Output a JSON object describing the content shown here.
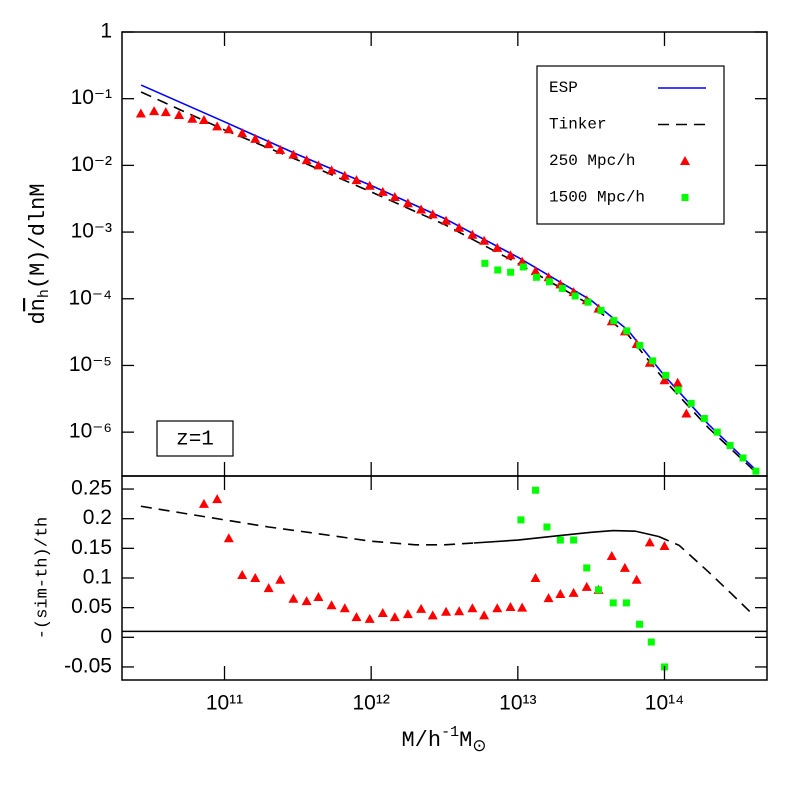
{
  "chart_data": [
    {
      "type": "line",
      "x_scale": "log",
      "y_scale": "log",
      "xlim": [
        20000000000.0,
        500000000000000.0
      ],
      "ylim": [
        2.2e-07,
        1
      ],
      "yticks": [
        1,
        {
          "value": 0.1,
          "label": "10⁻¹"
        },
        {
          "value": 0.01,
          "label": "10⁻²"
        },
        {
          "value": 0.001,
          "label": "10⁻³"
        },
        {
          "value": 0.0001,
          "label": "10⁻⁴"
        },
        {
          "value": 1e-05,
          "label": "10⁻⁵"
        },
        {
          "value": 1e-06,
          "label": "10⁻⁶"
        }
      ],
      "ylabel": {
        "pre": "d",
        "var": "n",
        "sub": "h",
        "post": "(M)/dlnM"
      },
      "annotation": "z=1",
      "legend": "upper right",
      "series": [
        {
          "name": "ESP",
          "color": "#0000ff",
          "style": "solid",
          "x": [
            27000000000.0,
            100000000000.0,
            316000000000.0,
            1000000000000.0,
            3160000000000.0,
            10000000000000.0,
            31600000000000.0,
            56200000000000.0,
            100000000000000.0,
            200000000000000.0,
            420000000000000.0
          ],
          "values": [
            0.16,
            0.045,
            0.0145,
            0.005,
            0.0016,
            0.00042,
            9.5e-05,
            3.4e-05,
            7e-06,
            1.3e-06,
            2.7e-07
          ]
        },
        {
          "name": "Tinker",
          "color": "#000000",
          "style": "dashed",
          "x": [
            27000000000.0,
            100000000000.0,
            316000000000.0,
            1000000000000.0,
            3160000000000.0,
            10000000000000.0,
            31600000000000.0,
            56200000000000.0,
            100000000000000.0,
            200000000000000.0,
            420000000000000.0
          ],
          "values": [
            0.126,
            0.034,
            0.012,
            0.004,
            0.0013,
            0.00034,
            8e-05,
            2.9e-05,
            6e-06,
            1.15e-06,
            2.5e-07
          ]
        },
        {
          "name": "250 Mpc/h",
          "color": "#ff0000",
          "marker": "triangle",
          "x": [
            26900000000.0,
            33100000000.0,
            39800000000.0,
            49000000000.0,
            60300000000.0,
            72400000000.0,
            89100000000.0,
            107000000000.0,
            132000000000.0,
            162000000000.0,
            200000000000.0,
            240000000000.0,
            295000000000.0,
            363000000000.0,
            437000000000.0,
            537000000000.0,
            661000000000.0,
            794000000000.0,
            977000000000.0,
            1200000000000.0,
            1450000000000.0,
            1780000000000.0,
            2190000000000.0,
            2630000000000.0,
            3240000000000.0,
            3980000000000.0,
            4900000000000.0,
            5890000000000.0,
            7240000000000.0,
            8910000000000.0,
            10700000000000.0,
            13200000000000.0,
            16200000000000.0,
            19500000000000.0,
            24000000000000.0,
            29500000000000.0,
            35500000000000.0,
            43700000000000.0,
            53700000000000.0,
            64600000000000.0,
            79400000000000.0,
            100000000000000.0,
            123000000000000.0,
            141000000000000.0
          ],
          "values": [
            0.06,
            0.065,
            0.063,
            0.057,
            0.05,
            0.048,
            0.0385,
            0.0348,
            0.0305,
            0.025,
            0.0208,
            0.0171,
            0.0145,
            0.012,
            0.01,
            0.0084,
            0.007,
            0.006,
            0.00495,
            0.004,
            0.00335,
            0.00271,
            0.00218,
            0.00184,
            0.00148,
            0.00116,
            0.00091,
            0.00074,
            0.00058,
            0.00045,
            0.00036,
            0.00026,
            0.00021,
            0.000164,
            0.000126,
            9.5e-05,
            7.1e-05,
            4.6e-05,
            3.25e-05,
            2.1e-05,
            1.1e-05,
            6e-06,
            5.5e-06,
            1.9e-06
          ]
        },
        {
          "name": "1500 Mpc/h",
          "color": "#00ff00",
          "marker": "square",
          "x": [
            5960000000000.0,
            7300000000000.0,
            8930000000000.0,
            10900000000000.0,
            13400000000000.0,
            16400000000000.0,
            20100000000000.0,
            24600000000000.0,
            30100000000000.0,
            36900000000000.0,
            45200000000000.0,
            55300000000000.0,
            67800000000000.0,
            83000000000000.0,
            102000000000000.0,
            124000000000000.0,
            152000000000000.0,
            187000000000000.0,
            229000000000000.0,
            280000000000000.0,
            343000000000000.0,
            420000000000000.0
          ],
          "values": [
            0.00034,
            0.00027,
            0.00025,
            0.0003,
            0.00021,
            0.00018,
            0.000143,
            0.00011,
            8.9e-05,
            6.7e-05,
            4.7e-05,
            3.3e-05,
            2e-05,
            1.17e-05,
            7.1e-06,
            4.3e-06,
            2.7e-06,
            1.6e-06,
            1e-06,
            6.3e-07,
            4.1e-07,
            2.6e-07
          ]
        }
      ]
    },
    {
      "type": "line",
      "x_scale": "log",
      "xlim": [
        20000000000.0,
        500000000000000.0
      ],
      "ylim": [
        -0.072,
        0.272
      ],
      "xticks": [
        {
          "value": 100000000000.0,
          "label": "10¹¹"
        },
        {
          "value": 1000000000000.0,
          "label": "10¹²"
        },
        {
          "value": 10000000000000.0,
          "label": "10¹³"
        },
        {
          "value": 100000000000000.0,
          "label": "10¹⁴"
        }
      ],
      "yticks": [
        -0.05,
        0,
        0.05,
        0.1,
        0.15,
        0.2,
        0.25
      ],
      "xlabel": {
        "pre": "M/h",
        "sup": "-1",
        "mid": "M",
        "sub": "⊙"
      },
      "ylabel": "-(sim-th)/th",
      "hline": 0.01,
      "series": [
        {
          "color": "#000000",
          "style": "dashed",
          "x": [
            26900000000.0,
            50100000000.0,
            100000000000.0,
            200000000000.0,
            398000000000.0,
            1000000000000.0,
            2000000000000.0,
            3160000000000.0,
            5010000000000.0,
            20000000000000.0,
            91200000000000.0,
            126000000000000.0,
            200000000000000.0,
            282000000000000.0,
            398000000000000.0
          ],
          "values": [
            0.221,
            0.21,
            0.198,
            0.186,
            0.176,
            0.162,
            0.156,
            0.156,
            0.159,
            null,
            0.17,
            0.155,
            0.11,
            0.075,
            0.039
          ]
        },
        {
          "color": "#000000",
          "style": "solid",
          "x": [
            5010000000000.0,
            10000000000000.0,
            20000000000000.0,
            31600000000000.0,
            44700000000000.0,
            63100000000000.0,
            91200000000000.0
          ],
          "values": [
            0.159,
            0.164,
            0.172,
            0.177,
            0.18,
            0.179,
            0.17
          ]
        },
        {
          "color": "#ff0000",
          "marker": "triangle",
          "x": [
            72400000000.0,
            89100000000.0,
            107000000000.0,
            132000000000.0,
            162000000000.0,
            200000000000.0,
            240000000000.0,
            295000000000.0,
            363000000000.0,
            437000000000.0,
            537000000000.0,
            661000000000.0,
            794000000000.0,
            977000000000.0,
            1200000000000.0,
            1450000000000.0,
            1780000000000.0,
            2190000000000.0,
            2630000000000.0,
            3240000000000.0,
            3980000000000.0,
            4900000000000.0,
            5890000000000.0,
            7240000000000.0,
            8910000000000.0,
            10700000000000.0,
            13200000000000.0,
            16200000000000.0,
            19500000000000.0,
            24000000000000.0,
            29500000000000.0,
            35500000000000.0,
            43700000000000.0,
            53700000000000.0,
            64600000000000.0,
            79400000000000.0,
            100000000000000.0
          ],
          "values": [
            0.225,
            0.233,
            0.167,
            0.105,
            0.1,
            0.083,
            0.097,
            0.065,
            0.061,
            0.068,
            0.054,
            0.049,
            0.034,
            0.031,
            0.041,
            0.034,
            0.039,
            0.048,
            0.037,
            0.043,
            0.044,
            0.049,
            0.037,
            0.049,
            0.051,
            0.05,
            0.1,
            0.066,
            0.073,
            0.075,
            0.085,
            0.08,
            0.137,
            0.117,
            0.097,
            0.16,
            0.154
          ]
        },
        {
          "color": "#00ff00",
          "marker": "square",
          "x": [
            10500000000000.0,
            13200000000000.0,
            15800000000000.0,
            19500000000000.0,
            24000000000000.0,
            29500000000000.0,
            35500000000000.0,
            44700000000000.0,
            55000000000000.0,
            67600000000000.0,
            81300000000000.0,
            100000000000000.0
          ],
          "values": [
            0.198,
            0.248,
            0.186,
            0.164,
            0.164,
            0.117,
            0.08,
            0.058,
            0.058,
            0.022,
            -0.008,
            -0.05
          ]
        }
      ]
    }
  ]
}
